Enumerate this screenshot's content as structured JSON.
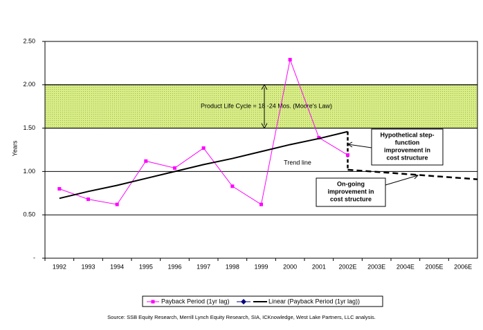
{
  "chart_data": {
    "type": "line",
    "y_label": "Years",
    "categories": [
      "1992",
      "1993",
      "1994",
      "1995",
      "1996",
      "1997",
      "1998",
      "1999",
      "2000",
      "2001",
      "2002E",
      "2003E",
      "2004E",
      "2005E",
      "2006E"
    ],
    "series": [
      {
        "name": "Payback Period (1yr lag)",
        "color": "#ff00ff",
        "marker": "square",
        "values": [
          0.8,
          0.68,
          0.62,
          1.12,
          1.04,
          1.27,
          0.83,
          0.62,
          2.29,
          1.39,
          1.19,
          null,
          null,
          null,
          null
        ]
      },
      {
        "name": "Linear (Payback Period (1yr lag))",
        "color": "#000000",
        "marker": "none",
        "values": [
          0.69,
          0.77,
          0.84,
          0.92,
          1.0,
          1.08,
          1.15,
          1.23,
          1.31,
          1.38,
          1.46,
          null,
          null,
          null,
          null
        ]
      }
    ],
    "ylim": [
      0,
      2.5
    ],
    "yticks": [
      {
        "value": 0,
        "label": "-"
      },
      {
        "value": 0.5,
        "label": "0.50"
      },
      {
        "value": 1,
        "label": "1.00"
      },
      {
        "value": 1.5,
        "label": "1.50"
      },
      {
        "value": 2,
        "label": "2.00"
      },
      {
        "value": 2.5,
        "label": "2.50"
      }
    ],
    "grid": true,
    "band": {
      "range": [
        1.5,
        2.0
      ],
      "label": "Product Life Cycle = 18 -24 Mos. (Moore's Law)"
    },
    "annotations": {
      "trend": "Trend line",
      "step": [
        "Hypothetical step-",
        "function",
        "improvement in",
        "cost structure"
      ],
      "ongoing": [
        "On-going",
        "improvement in",
        "cost structure"
      ]
    },
    "legend_position": "bottom",
    "source": "Source: SSB Equity Research, Merrill Lynch Equity Research, SIA, ICKnowledge, West Lake Partners, LLC analysis."
  }
}
